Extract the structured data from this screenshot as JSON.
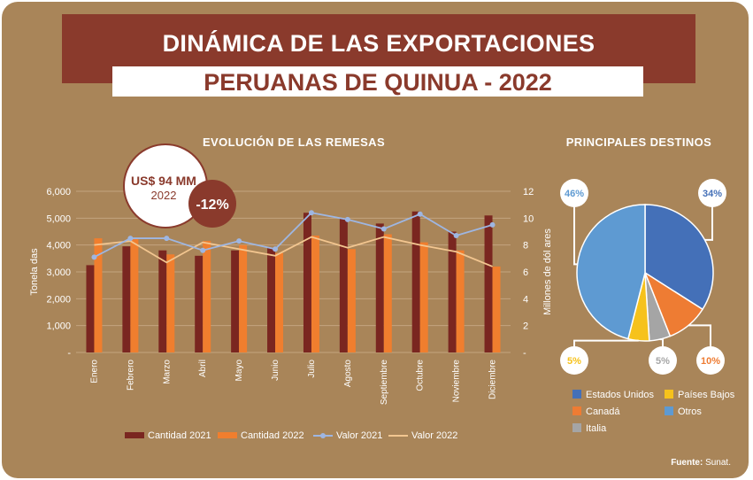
{
  "title_line1": "DINÁMICA DE LAS EXPORTACIONES",
  "title_line2": "PERUANAS DE QUINUA - 2022",
  "callout_value": "US$ 94 MM",
  "callout_year": "2022",
  "callout_change": "-12%",
  "source_label": "Fuente:",
  "source_value": "Sunat.",
  "colors": {
    "background": "#a98559",
    "title_bar": "#8a3a2c",
    "cantidad_2021": "#7a2620",
    "cantidad_2022": "#f07e2e",
    "valor_2021": "#9eb6e2",
    "valor_2022": "#f3c690",
    "estados_unidos": "#4470b8",
    "canada": "#ee7c33",
    "paises_bajos": "#f6c21c",
    "italia": "#a5a5a5",
    "otros": "#5e9ad2"
  },
  "chart_data": [
    {
      "type": "bar",
      "title": "EVOLUCIÓN DE LAS REMESAS",
      "categories": [
        "Enero",
        "Febrero",
        "Marzo",
        "Abril",
        "Mayo",
        "Junio",
        "Julio",
        "Agosto",
        "Septiembre",
        "Octubre",
        "Noviembre",
        "Diciembre"
      ],
      "ylabel": "Tonela das",
      "y2label": "Millones de dól ares",
      "ylim": [
        0,
        6000
      ],
      "y2lim": [
        0,
        12
      ],
      "yticks": [
        "-",
        "1,000",
        "2,000",
        "3,000",
        "4,000",
        "5,000",
        "6,000"
      ],
      "y2ticks": [
        "-",
        "2",
        "4",
        "6",
        "8",
        "10",
        "12"
      ],
      "legend_position": "bottom",
      "series": [
        {
          "name": "Cantidad 2021",
          "type": "bar",
          "axis": "left",
          "values": [
            3250,
            3950,
            3800,
            3600,
            3800,
            3900,
            5200,
            5000,
            4800,
            5250,
            4500,
            5100
          ]
        },
        {
          "name": "Cantidad 2022",
          "type": "bar",
          "axis": "left",
          "values": [
            4250,
            4250,
            3650,
            4150,
            4000,
            3700,
            4350,
            3850,
            4400,
            4100,
            3800,
            3200
          ]
        },
        {
          "name": "Valor 2021",
          "type": "line",
          "axis": "right",
          "values": [
            7.1,
            8.5,
            8.5,
            7.6,
            8.3,
            7.7,
            10.4,
            9.9,
            9.2,
            10.3,
            8.7,
            9.5
          ]
        },
        {
          "name": "Valor 2022",
          "type": "line",
          "axis": "right",
          "values": [
            8.0,
            8.3,
            6.7,
            8.2,
            7.7,
            7.2,
            8.6,
            7.8,
            8.6,
            8.0,
            7.5,
            6.4
          ]
        }
      ]
    },
    {
      "type": "pie",
      "title": "PRINCIPALES DESTINOS",
      "slices": [
        {
          "name": "Estados Unidos",
          "value": 34,
          "label": "34%"
        },
        {
          "name": "Canadá",
          "value": 10,
          "label": "10%"
        },
        {
          "name": "Italia",
          "value": 5,
          "label": "5%"
        },
        {
          "name": "Países Bajos",
          "value": 5,
          "label": "5%"
        },
        {
          "name": "Otros",
          "value": 46,
          "label": "46%"
        }
      ],
      "legend": [
        "Estados Unidos",
        "Países Bajos",
        "Canadá",
        "Otros",
        "Italia"
      ]
    }
  ]
}
